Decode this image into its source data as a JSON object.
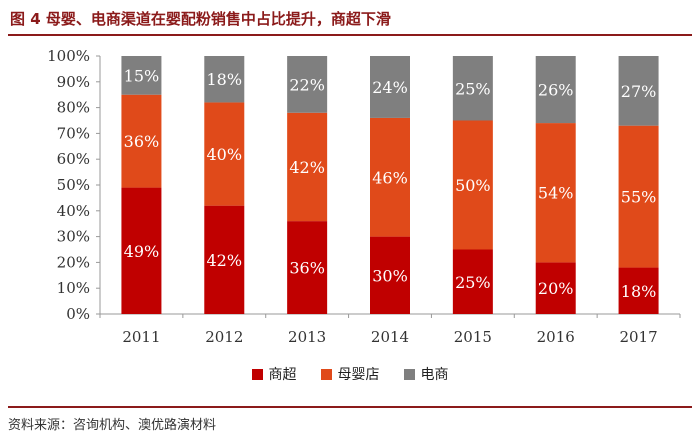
{
  "title": "图 4  母婴、电商渠道在婴配粉销售中占比提升，商超下滑",
  "source": "资料来源：咨询机构、澳优路演材料",
  "chart_data": {
    "type": "bar",
    "stacked": true,
    "categories": [
      "2011",
      "2012",
      "2013",
      "2014",
      "2015",
      "2016",
      "2017"
    ],
    "series": [
      {
        "name": "商超",
        "color": "#c00000",
        "values": [
          49,
          42,
          36,
          30,
          25,
          20,
          18
        ],
        "labels": [
          "49%",
          "42%",
          "36%",
          "30%",
          "25%",
          "20%",
          "18%"
        ]
      },
      {
        "name": "母婴店",
        "color": "#e04a1a",
        "values": [
          36,
          40,
          42,
          46,
          50,
          54,
          55
        ],
        "labels": [
          "36%",
          "40%",
          "42%",
          "46%",
          "50%",
          "54%",
          "55%"
        ]
      },
      {
        "name": "电商",
        "color": "#7f7f7f",
        "values": [
          15,
          18,
          22,
          24,
          25,
          26,
          27
        ],
        "labels": [
          "15%",
          "18%",
          "22%",
          "24%",
          "25%",
          "26%",
          "27%"
        ]
      }
    ],
    "ylim": [
      0,
      100
    ],
    "yticks": [
      "0%",
      "10%",
      "20%",
      "30%",
      "40%",
      "50%",
      "60%",
      "70%",
      "80%",
      "90%",
      "100%"
    ],
    "grid": false,
    "legend_position": "bottom"
  }
}
